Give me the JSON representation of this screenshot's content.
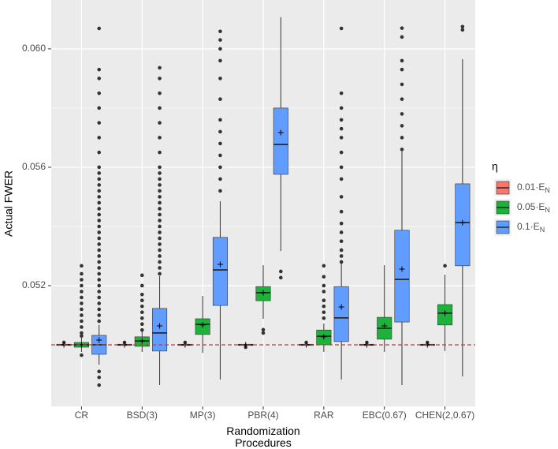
{
  "chart_data": {
    "type": "boxplot",
    "x_label": "Randomization Procedures",
    "y_label": "Actual FWER",
    "legend_title": "η",
    "legend_position": "right",
    "categories": [
      "CR",
      "BSD(3)",
      "MP(3)",
      "PBR(4)",
      "RAR",
      "EBC(0.67)",
      "CHEN(2,0.67)"
    ],
    "ylim": [
      0.04792,
      0.06165
    ],
    "yticks": [
      0.052,
      0.056,
      {
        "value": 0.06,
        "label": "0.060"
      }
    ],
    "y_minor_ticks": [
      0.05,
      0.054,
      0.058
    ],
    "grid": true,
    "hline": 0.05,
    "hline_color": "#b2413f",
    "series": [
      {
        "name": "0.01·EN",
        "color": "#F8766D",
        "whisker_low": [
          0.04995,
          0.04995,
          0.04995,
          0.04996,
          0.04995,
          0.04995,
          0.04995
        ],
        "q1": [
          0.04998,
          0.04998,
          0.04998,
          0.04998,
          0.04998,
          0.04998,
          0.04998
        ],
        "median": [
          0.05,
          0.05,
          0.05,
          0.05,
          0.05,
          0.05,
          0.05
        ],
        "q3": [
          0.05002,
          0.05002,
          0.05002,
          0.05002,
          0.05002,
          0.05002,
          0.05002
        ],
        "whisker_high": [
          0.05005,
          0.05005,
          0.05005,
          0.05004,
          0.05005,
          0.05005,
          0.05005
        ],
        "mean": [
          0.05,
          0.05,
          0.05,
          0.05,
          0.05,
          0.05,
          0.05
        ],
        "outliers": [
          [
            0.05008
          ],
          [
            0.05008
          ],
          [
            0.05008
          ],
          [
            0.04992
          ],
          [
            0.05008
          ],
          [
            0.05008
          ],
          [
            0.05008
          ]
        ]
      },
      {
        "name": "0.05·EN",
        "color": "#1DB33A",
        "whisker_low": [
          0.04976,
          0.04976,
          0.04973,
          0.05088,
          0.04976,
          0.04976,
          0.04979
        ],
        "q1": [
          0.04992,
          0.04995,
          0.05035,
          0.05149,
          0.05,
          0.05019,
          0.05067
        ],
        "median": [
          0.05,
          0.05013,
          0.05069,
          0.05176,
          0.05029,
          0.05056,
          0.05107
        ],
        "q3": [
          0.05008,
          0.05027,
          0.05088,
          0.05197,
          0.0505,
          0.05093,
          0.05136
        ],
        "whisker_high": [
          0.05024,
          0.05045,
          0.05165,
          0.05269,
          0.05072,
          0.05269,
          0.05237
        ],
        "mean": [
          0.05,
          0.05013,
          0.05067,
          0.05176,
          0.05027,
          0.05064,
          0.05107
        ],
        "outliers": [
          [
            0.04965,
            0.0503,
            0.0504,
            0.0506,
            0.0508,
            0.051,
            0.0512,
            0.0514,
            0.0516,
            0.0518,
            0.052,
            0.0522,
            0.0524,
            0.05267
          ],
          [
            0.0505,
            0.0507,
            0.0509,
            0.0511,
            0.0513,
            0.0515,
            0.0517,
            0.052,
            0.05235
          ],
          [],
          [
            0.05051,
            0.0504
          ],
          [
            0.0509,
            0.0511,
            0.0513,
            0.0515,
            0.0518,
            0.052,
            0.0523,
            0.05267
          ],
          [],
          [
            0.05267
          ]
        ]
      },
      {
        "name": "0.1·EN",
        "color": "#619CFF",
        "whisker_low": [
          0.04933,
          0.04864,
          0.04883,
          0.05317,
          0.04883,
          0.04864,
          0.04893
        ],
        "q1": [
          0.04968,
          0.04979,
          0.05133,
          0.05576,
          0.05011,
          0.05077,
          0.05267
        ],
        "median": [
          0.05,
          0.0504,
          0.05253,
          0.05677,
          0.05091,
          0.05221,
          0.05413
        ],
        "q3": [
          0.05032,
          0.05123,
          0.05363,
          0.058,
          0.05197,
          0.05387,
          0.05544
        ],
        "whisker_high": [
          0.05067,
          0.05232,
          0.05485,
          0.06107,
          0.05277,
          0.05653,
          0.05965
        ],
        "mean": [
          0.05016,
          0.05064,
          0.05272,
          0.05717,
          0.05128,
          0.05256,
          0.05413
        ],
        "outliers": [
          [
            0.04864,
            0.0489,
            0.0491,
            0.0508,
            0.051,
            0.0512,
            0.0514,
            0.0516,
            0.0518,
            0.052,
            0.0522,
            0.0524,
            0.0526,
            0.0528,
            0.053,
            0.0532,
            0.0534,
            0.0536,
            0.0538,
            0.054,
            0.0542,
            0.0544,
            0.0546,
            0.0548,
            0.055,
            0.0552,
            0.0554,
            0.0556,
            0.0558,
            0.056,
            0.0565,
            0.057,
            0.0575,
            0.058,
            0.0585,
            0.059,
            0.0593,
            0.06069
          ],
          [
            0.0524,
            0.0526,
            0.0528,
            0.053,
            0.0532,
            0.0534,
            0.0536,
            0.0538,
            0.054,
            0.0542,
            0.0544,
            0.0546,
            0.0548,
            0.055,
            0.0552,
            0.0554,
            0.0556,
            0.0558,
            0.056,
            0.0565,
            0.057,
            0.0575,
            0.058,
            0.0585,
            0.059,
            0.05936
          ],
          [
            0.0552,
            0.0556,
            0.056,
            0.0564,
            0.0568,
            0.0572,
            0.0576,
            0.0583,
            0.059,
            0.0596,
            0.06,
            0.0603,
            0.06059
          ],
          [
            0.05248,
            0.05227
          ],
          [
            0.0528,
            0.053,
            0.0532,
            0.0535,
            0.0538,
            0.0541,
            0.0545,
            0.055,
            0.0556,
            0.056,
            0.0565,
            0.057,
            0.0573,
            0.0576,
            0.058,
            0.0585,
            0.06069
          ],
          [
            0.0566,
            0.057,
            0.0574,
            0.0578,
            0.0583,
            0.0588,
            0.0593,
            0.0596,
            0.0604,
            0.0607
          ],
          [
            0.06075,
            0.06064
          ]
        ]
      }
    ]
  }
}
